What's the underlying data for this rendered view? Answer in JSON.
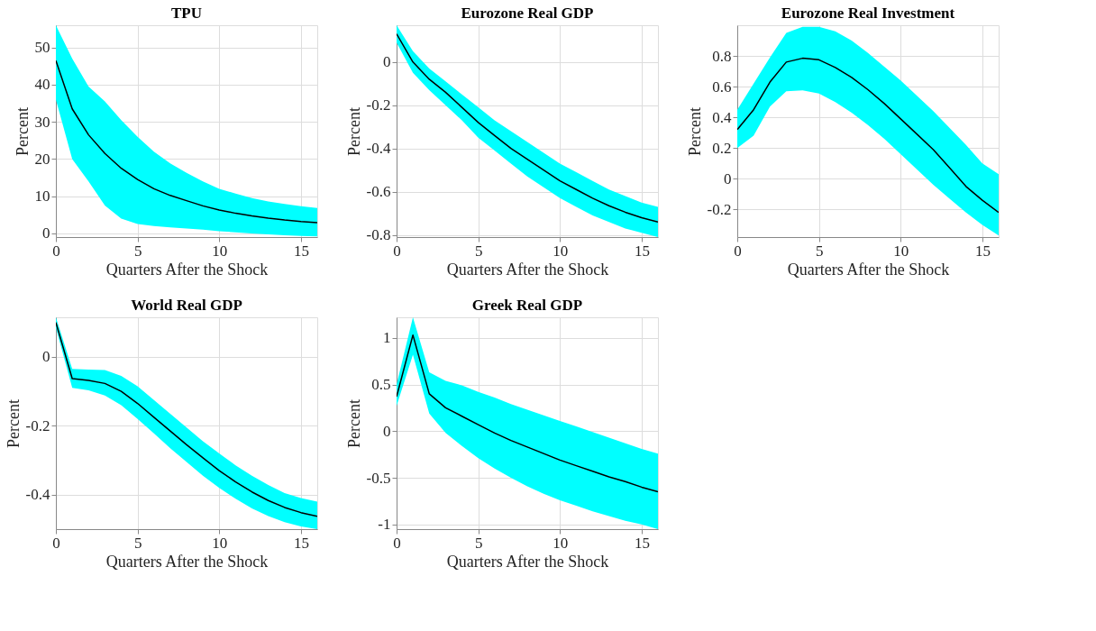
{
  "chart_data": [
    {
      "type": "line",
      "title": "TPU",
      "xlabel": "Quarters After the Shock",
      "ylabel": "Percent",
      "x": [
        0,
        1,
        2,
        3,
        4,
        5,
        6,
        7,
        8,
        9,
        10,
        11,
        12,
        13,
        14,
        15,
        16
      ],
      "xlim": [
        0,
        16
      ],
      "xticks": [
        0,
        5,
        10,
        15
      ],
      "ylim": [
        -1,
        56
      ],
      "yticks": [
        0,
        10,
        20,
        30,
        40,
        50
      ],
      "grid": true,
      "series": [
        {
          "color": "#000000",
          "values": [
            46.5,
            33.5,
            26.5,
            21.5,
            17.5,
            14.5,
            12,
            10.2,
            8.8,
            7.4,
            6.3,
            5.4,
            4.7,
            4.1,
            3.6,
            3.2,
            2.9
          ],
          "lower": [
            36,
            20,
            14,
            7.5,
            4,
            2.5,
            2,
            1.6,
            1.3,
            1,
            0.6,
            0.3,
            0,
            -0.3,
            -0.5,
            -0.7,
            -0.8
          ],
          "upper": [
            56,
            47,
            39.5,
            35.5,
            30.5,
            26,
            22,
            18.8,
            16.3,
            14,
            12,
            10.7,
            9.5,
            8.6,
            7.9,
            7.3,
            6.8
          ]
        }
      ]
    },
    {
      "type": "line",
      "title": "Eurozone Real GDP",
      "xlabel": "Quarters After the Shock",
      "ylabel": "Percent",
      "x": [
        0,
        1,
        2,
        3,
        4,
        5,
        6,
        7,
        8,
        9,
        10,
        11,
        12,
        13,
        14,
        15,
        16
      ],
      "xlim": [
        0,
        16
      ],
      "xticks": [
        0,
        5,
        10,
        15
      ],
      "ylim": [
        -0.81,
        0.17
      ],
      "yticks": [
        -0.8,
        -0.6,
        -0.4,
        -0.2,
        0
      ],
      "grid": true,
      "series": [
        {
          "color": "#000000",
          "values": [
            0.13,
            0.0,
            -0.08,
            -0.14,
            -0.21,
            -0.28,
            -0.34,
            -0.4,
            -0.45,
            -0.5,
            -0.55,
            -0.59,
            -0.63,
            -0.665,
            -0.695,
            -0.72,
            -0.74
          ],
          "lower": [
            0.09,
            -0.05,
            -0.13,
            -0.2,
            -0.27,
            -0.35,
            -0.41,
            -0.47,
            -0.53,
            -0.58,
            -0.63,
            -0.67,
            -0.71,
            -0.74,
            -0.77,
            -0.79,
            -0.81
          ],
          "upper": [
            0.17,
            0.05,
            -0.03,
            -0.09,
            -0.15,
            -0.21,
            -0.27,
            -0.32,
            -0.37,
            -0.42,
            -0.47,
            -0.51,
            -0.55,
            -0.59,
            -0.62,
            -0.65,
            -0.67
          ]
        }
      ]
    },
    {
      "type": "line",
      "title": "Eurozone Real Investment",
      "xlabel": "Quarters After the Shock",
      "ylabel": "Percent",
      "x": [
        0,
        1,
        2,
        3,
        4,
        5,
        6,
        7,
        8,
        9,
        10,
        11,
        12,
        13,
        14,
        15,
        16
      ],
      "xlim": [
        0,
        16
      ],
      "xticks": [
        0,
        5,
        10,
        15
      ],
      "ylim": [
        -0.38,
        1.0
      ],
      "yticks": [
        -0.2,
        0,
        0.2,
        0.4,
        0.6,
        0.8
      ],
      "grid": true,
      "series": [
        {
          "color": "#000000",
          "values": [
            0.32,
            0.45,
            0.63,
            0.76,
            0.785,
            0.775,
            0.725,
            0.66,
            0.58,
            0.49,
            0.39,
            0.29,
            0.19,
            0.07,
            -0.05,
            -0.14,
            -0.22
          ],
          "lower": [
            0.2,
            0.28,
            0.47,
            0.57,
            0.575,
            0.555,
            0.5,
            0.43,
            0.35,
            0.26,
            0.16,
            0.06,
            -0.04,
            -0.13,
            -0.22,
            -0.3,
            -0.37
          ],
          "upper": [
            0.45,
            0.62,
            0.79,
            0.95,
            0.99,
            0.99,
            0.96,
            0.9,
            0.82,
            0.73,
            0.64,
            0.54,
            0.44,
            0.33,
            0.22,
            0.1,
            0.03
          ]
        }
      ]
    },
    {
      "type": "line",
      "title": "World Real GDP",
      "xlabel": "Quarters After the Shock",
      "ylabel": "Percent",
      "x": [
        0,
        1,
        2,
        3,
        4,
        5,
        6,
        7,
        8,
        9,
        10,
        11,
        12,
        13,
        14,
        15,
        16
      ],
      "xlim": [
        0,
        16
      ],
      "xticks": [
        0,
        5,
        10,
        15
      ],
      "ylim": [
        -0.5,
        0.115
      ],
      "yticks": [
        -0.4,
        -0.2,
        0
      ],
      "grid": true,
      "series": [
        {
          "color": "#000000",
          "values": [
            0.1,
            -0.063,
            -0.068,
            -0.077,
            -0.1,
            -0.135,
            -0.175,
            -0.215,
            -0.255,
            -0.293,
            -0.33,
            -0.363,
            -0.392,
            -0.417,
            -0.437,
            -0.452,
            -0.463
          ],
          "lower": [
            0.085,
            -0.09,
            -0.097,
            -0.112,
            -0.14,
            -0.18,
            -0.222,
            -0.265,
            -0.305,
            -0.345,
            -0.38,
            -0.412,
            -0.44,
            -0.462,
            -0.48,
            -0.492,
            -0.5
          ],
          "upper": [
            0.115,
            -0.035,
            -0.037,
            -0.038,
            -0.055,
            -0.085,
            -0.125,
            -0.165,
            -0.205,
            -0.245,
            -0.28,
            -0.315,
            -0.345,
            -0.372,
            -0.395,
            -0.41,
            -0.42
          ]
        }
      ]
    },
    {
      "type": "line",
      "title": "Greek Real GDP",
      "xlabel": "Quarters After the Shock",
      "ylabel": "Percent",
      "x": [
        0,
        1,
        2,
        3,
        4,
        5,
        6,
        7,
        8,
        9,
        10,
        11,
        12,
        13,
        14,
        15,
        16
      ],
      "xlim": [
        0,
        16
      ],
      "xticks": [
        0,
        5,
        10,
        15
      ],
      "ylim": [
        -1.05,
        1.22
      ],
      "yticks": [
        -1,
        -0.5,
        0,
        0.5,
        1
      ],
      "grid": true,
      "series": [
        {
          "color": "#000000",
          "values": [
            0.37,
            1.03,
            0.4,
            0.25,
            0.16,
            0.07,
            -0.02,
            -0.1,
            -0.17,
            -0.24,
            -0.31,
            -0.37,
            -0.43,
            -0.49,
            -0.54,
            -0.6,
            -0.65
          ],
          "lower": [
            0.27,
            0.82,
            0.19,
            -0.02,
            -0.16,
            -0.29,
            -0.4,
            -0.5,
            -0.59,
            -0.67,
            -0.74,
            -0.8,
            -0.86,
            -0.91,
            -0.96,
            -1.0,
            -1.05
          ],
          "upper": [
            0.5,
            1.22,
            0.63,
            0.54,
            0.49,
            0.42,
            0.36,
            0.29,
            0.23,
            0.17,
            0.11,
            0.05,
            -0.01,
            -0.07,
            -0.13,
            -0.19,
            -0.24
          ]
        }
      ]
    }
  ]
}
